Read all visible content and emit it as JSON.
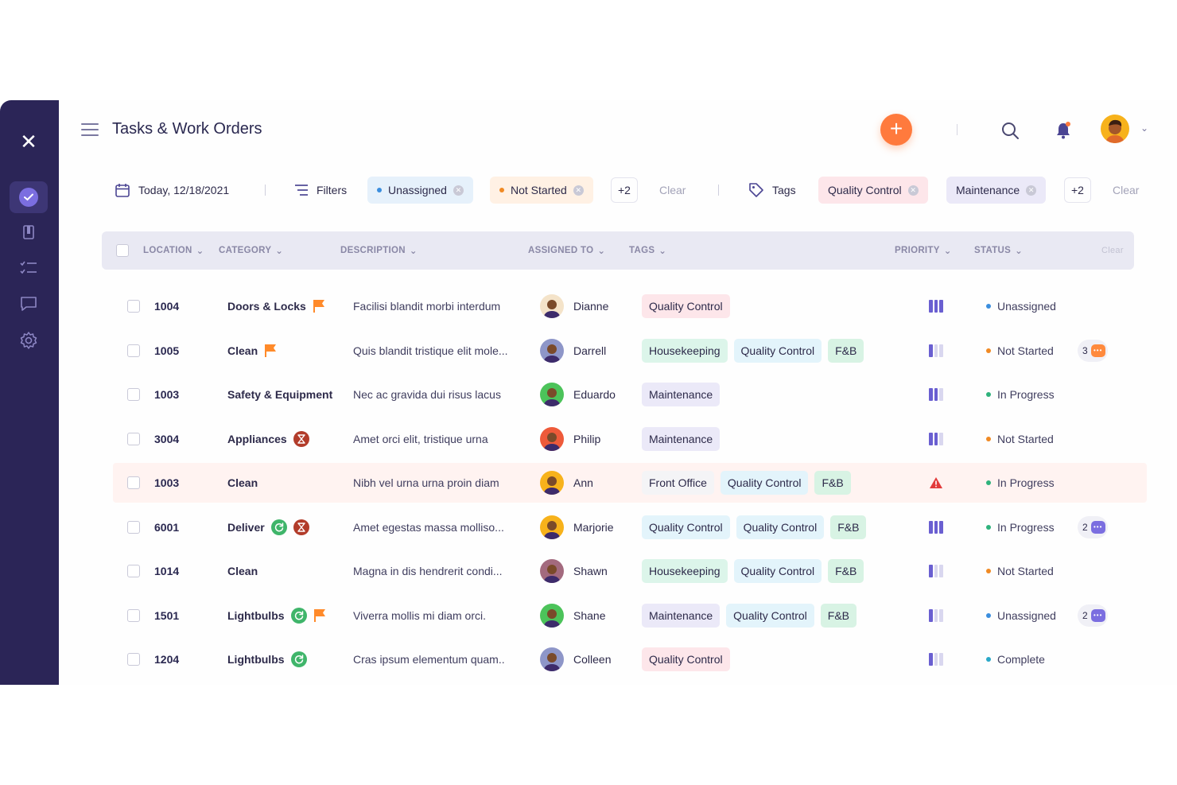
{
  "header": {
    "title": "Tasks & Work Orders",
    "add_icon": "plus-icon",
    "search_icon": "search-icon",
    "bell_icon": "bell-icon",
    "accent": "#ff7a3d"
  },
  "sidebar": {
    "items": [
      {
        "name": "close-icon",
        "active": false
      },
      {
        "name": "tasks-icon",
        "active": true
      },
      {
        "name": "document-icon",
        "active": false
      },
      {
        "name": "checklist-icon",
        "active": false
      },
      {
        "name": "chat-icon",
        "active": false
      },
      {
        "name": "gear-icon",
        "active": false
      }
    ],
    "background": "#2b2557"
  },
  "filterbar": {
    "date_label": "Today, 12/18/2021",
    "filters_label": "Filters",
    "filter_chips": [
      {
        "label": "Unassigned",
        "dot_color": "#3b8ede",
        "bg": "#e6f1fb"
      },
      {
        "label": "Not Started",
        "dot_color": "#f08a24",
        "bg": "#fff1e4"
      }
    ],
    "filters_more": "+2",
    "filters_clear": "Clear",
    "tags_label": "Tags",
    "tag_chips": [
      {
        "label": "Quality Control",
        "bg": "#fde6ea"
      },
      {
        "label": "Maintenance",
        "bg": "#ebe9f8"
      }
    ],
    "tags_more": "+2",
    "tags_clear": "Clear"
  },
  "table": {
    "columns": {
      "location": "LOCATION",
      "category": "CATEGORY",
      "description": "DESCRIPTION",
      "assigned_to": "ASSIGNED TO",
      "tags": "TAGS",
      "priority": "PRIORITY",
      "status": "STATUS",
      "clear": "Clear"
    },
    "rows": [
      {
        "location": "1004",
        "category": "Doors & Locks",
        "cat_icons": [
          "flag-icon"
        ],
        "description": "Facilisi blandit morbi interdum",
        "assignee": "Dianne",
        "avatar_color": "#f4e3c9",
        "tags": [
          "Quality Control"
        ],
        "priority": 3,
        "status": "Unassigned",
        "status_color": "#3b8ede",
        "comments": "",
        "highlight": false
      },
      {
        "location": "1005",
        "category": "Clean",
        "cat_icons": [
          "flag-icon"
        ],
        "description": "Quis blandit tristique elit mole...",
        "assignee": "Darrell",
        "avatar_color": "#8e96c8",
        "tags": [
          "Housekeeping",
          "Quality Control",
          "F&B"
        ],
        "priority": 1,
        "status": "Not Started",
        "status_color": "#f08a24",
        "comments": "3",
        "comment_color": "#ff8a3d",
        "highlight": false
      },
      {
        "location": "1003",
        "category": "Safety & Equipment",
        "cat_icons": [],
        "description": "Nec ac gravida dui risus lacus",
        "assignee": "Eduardo",
        "avatar_color": "#4cc35a",
        "tags": [
          "Maintenance"
        ],
        "priority": 2,
        "status": "In Progress",
        "status_color": "#2fb27c",
        "comments": "",
        "highlight": false
      },
      {
        "location": "3004",
        "category": "Appliances",
        "cat_icons": [
          "hourglass-icon"
        ],
        "description": "Amet orci elit, tristique urna",
        "assignee": "Philip",
        "avatar_color": "#ee5a3a",
        "tags": [
          "Maintenance"
        ],
        "priority": 2,
        "status": "Not Started",
        "status_color": "#f08a24",
        "comments": "",
        "highlight": false
      },
      {
        "location": "1003",
        "category": "Clean",
        "cat_icons": [],
        "description": "Nibh vel urna urna proin diam",
        "assignee": "Ann",
        "avatar_color": "#f7b21b",
        "tags": [
          "Front Office",
          "Quality Control",
          "F&B"
        ],
        "priority": 4,
        "status": "In Progress",
        "status_color": "#2fb27c",
        "comments": "",
        "highlight": true
      },
      {
        "location": "6001",
        "category": "Deliver",
        "cat_icons": [
          "refresh-icon",
          "hourglass-icon"
        ],
        "description": "Amet egestas massa molliso...",
        "assignee": "Marjorie",
        "avatar_color": "#f7b21b",
        "tags": [
          "Quality Control",
          "Quality Control",
          "F&B"
        ],
        "priority": 3,
        "status": "In Progress",
        "status_color": "#2fb27c",
        "comments": "2",
        "comment_color": "#7b6ee0",
        "highlight": false
      },
      {
        "location": "1014",
        "category": "Clean",
        "cat_icons": [],
        "description": "Magna in dis hendrerit condi...",
        "assignee": "Shawn",
        "avatar_color": "#a36a7e",
        "tags": [
          "Housekeeping",
          "Quality Control",
          "F&B"
        ],
        "priority": 1,
        "status": "Not Started",
        "status_color": "#f08a24",
        "comments": "",
        "highlight": false
      },
      {
        "location": "1501",
        "category": "Lightbulbs",
        "cat_icons": [
          "refresh-icon",
          "flag-icon"
        ],
        "description": "Viverra mollis mi diam orci.",
        "assignee": "Shane",
        "avatar_color": "#4cc35a",
        "tags": [
          "Maintenance",
          "Quality Control",
          "F&B"
        ],
        "priority": 1,
        "status": "Unassigned",
        "status_color": "#3b8ede",
        "comments": "2",
        "comment_color": "#7b6ee0",
        "highlight": false
      },
      {
        "location": "1204",
        "category": "Lightbulbs",
        "cat_icons": [
          "refresh-icon"
        ],
        "description": "Cras ipsum elementum quam..",
        "assignee": "Colleen",
        "avatar_color": "#8e96c8",
        "tags": [
          "Quality Control"
        ],
        "priority": 1,
        "status": "Complete",
        "status_color": "#2aa8c8",
        "comments": "",
        "highlight": false
      }
    ]
  },
  "tag_colors": {
    "Quality Control": "#fde6ea",
    "Housekeeping": "#dcf5ea",
    "F&B": "#d8f3e4",
    "Maintenance": "#ebe9f8",
    "Front Office": "#f4f4f6"
  },
  "tag_alt_colors": {
    "Quality Control": "#e3f4fb"
  }
}
